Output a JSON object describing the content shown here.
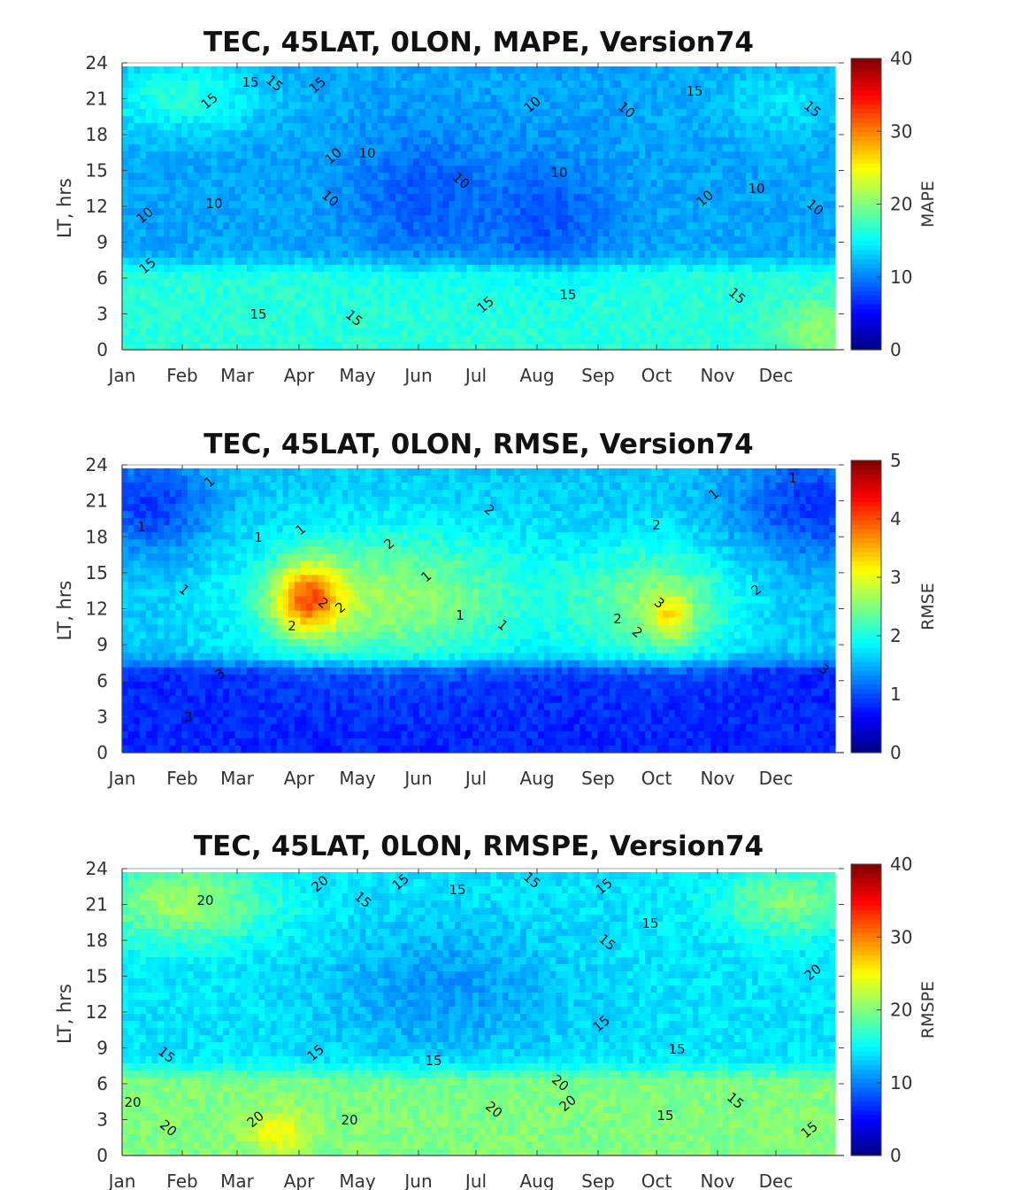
{
  "chart_data": [
    {
      "type": "heatmap",
      "title": "TEC, 45LAT, 0LON, MAPE, Version74",
      "ylabel": "LT, hrs",
      "y_ticks": [
        "0",
        "3",
        "6",
        "9",
        "12",
        "15",
        "18",
        "21",
        "24"
      ],
      "ylim": [
        0,
        24
      ],
      "x_ticks": [
        "Jan",
        "Feb",
        "Mar",
        "Apr",
        "May",
        "Jun",
        "Jul",
        "Aug",
        "Sep",
        "Oct",
        "Nov",
        "Dec"
      ],
      "colorbar": {
        "label": "MAPE",
        "range": [
          0,
          40
        ],
        "ticks": [
          "0",
          "10",
          "20",
          "30",
          "40"
        ],
        "colormap": "jet"
      },
      "contour_labels": [
        "15",
        "15",
        "15",
        "15",
        "15",
        "15",
        "10",
        "10",
        "10",
        "10",
        "10",
        "10",
        "10",
        "10",
        "10",
        "10",
        "10",
        "10",
        "15",
        "15",
        "15",
        "15",
        "15",
        "15"
      ],
      "base_level": 11,
      "features": [
        {
          "region": "Jan-Feb, 19-24 LT",
          "value": 18
        },
        {
          "region": "all months, 0-6 LT",
          "value": 16
        },
        {
          "region": "May-Jun, 9-18 LT",
          "value": 8
        },
        {
          "region": "Aug, 6-15 LT",
          "value": 8
        }
      ]
    },
    {
      "type": "heatmap",
      "title": "TEC, 45LAT, 0LON, RMSE, Version74",
      "ylabel": "LT, hrs",
      "y_ticks": [
        "0",
        "3",
        "6",
        "9",
        "12",
        "15",
        "18",
        "21",
        "24"
      ],
      "ylim": [
        0,
        24
      ],
      "x_ticks": [
        "Jan",
        "Feb",
        "Mar",
        "Apr",
        "May",
        "Jun",
        "Jul",
        "Aug",
        "Sep",
        "Oct",
        "Nov",
        "Dec"
      ],
      "colorbar": {
        "label": "RMSE",
        "range": [
          0,
          5
        ],
        "ticks": [
          "0",
          "1",
          "2",
          "3",
          "4",
          "5"
        ],
        "colormap": "jet"
      },
      "contour_labels": [
        "1",
        "1",
        "1",
        "1",
        "1",
        "1",
        "1",
        "1",
        "2",
        "2",
        "2",
        "2",
        "2",
        "2",
        "2",
        "2",
        "2",
        "3",
        "3",
        "3",
        "3",
        "1",
        "1"
      ],
      "base_level": 1.6,
      "features": [
        {
          "region": "Mar-Jun, 7-21 LT",
          "value": 2.4
        },
        {
          "region": "Apr, 10-16 LT",
          "value": 3.6
        },
        {
          "region": "Sep-Nov, 9-18 LT",
          "value": 2.4
        },
        {
          "region": "Oct, 10-13 LT",
          "value": 3.1
        },
        {
          "region": "all months, 0-7 LT",
          "value": 0.9
        },
        {
          "region": "Jan, 17-24 LT",
          "value": 0.9
        },
        {
          "region": "Dec, 17-24 LT",
          "value": 0.9
        }
      ]
    },
    {
      "type": "heatmap",
      "title": "TEC, 45LAT, 0LON, RMSPE, Version74",
      "ylabel": "LT, hrs",
      "y_ticks": [
        "0",
        "3",
        "6",
        "9",
        "12",
        "15",
        "18",
        "21",
        "24"
      ],
      "ylim": [
        0,
        24
      ],
      "x_ticks": [
        "Jan",
        "Feb",
        "Mar",
        "Apr",
        "May",
        "Jun",
        "Jul",
        "Aug",
        "Sep",
        "Oct",
        "Nov",
        "Dec"
      ],
      "colorbar": {
        "label": "RMSPE",
        "range": [
          0,
          40
        ],
        "ticks": [
          "0",
          "10",
          "20",
          "30",
          "40"
        ],
        "colormap": "jet"
      },
      "contour_labels": [
        "20",
        "20",
        "15",
        "15",
        "15",
        "15",
        "15",
        "15",
        "15",
        "15",
        "15",
        "15",
        "15",
        "15",
        "20",
        "20",
        "20",
        "20",
        "20",
        "20",
        "20",
        "20",
        "15",
        "15",
        "15"
      ],
      "base_level": 14,
      "features": [
        {
          "region": "Jan-Feb, 18-24 LT",
          "value": 21
        },
        {
          "region": "Nov-Dec, 19-24 LT",
          "value": 20
        },
        {
          "region": "all months, 0-6 LT",
          "value": 20
        },
        {
          "region": "Apr, 1-4 LT",
          "value": 25
        },
        {
          "region": "May-Aug, 9-18 LT",
          "value": 11
        }
      ]
    }
  ]
}
